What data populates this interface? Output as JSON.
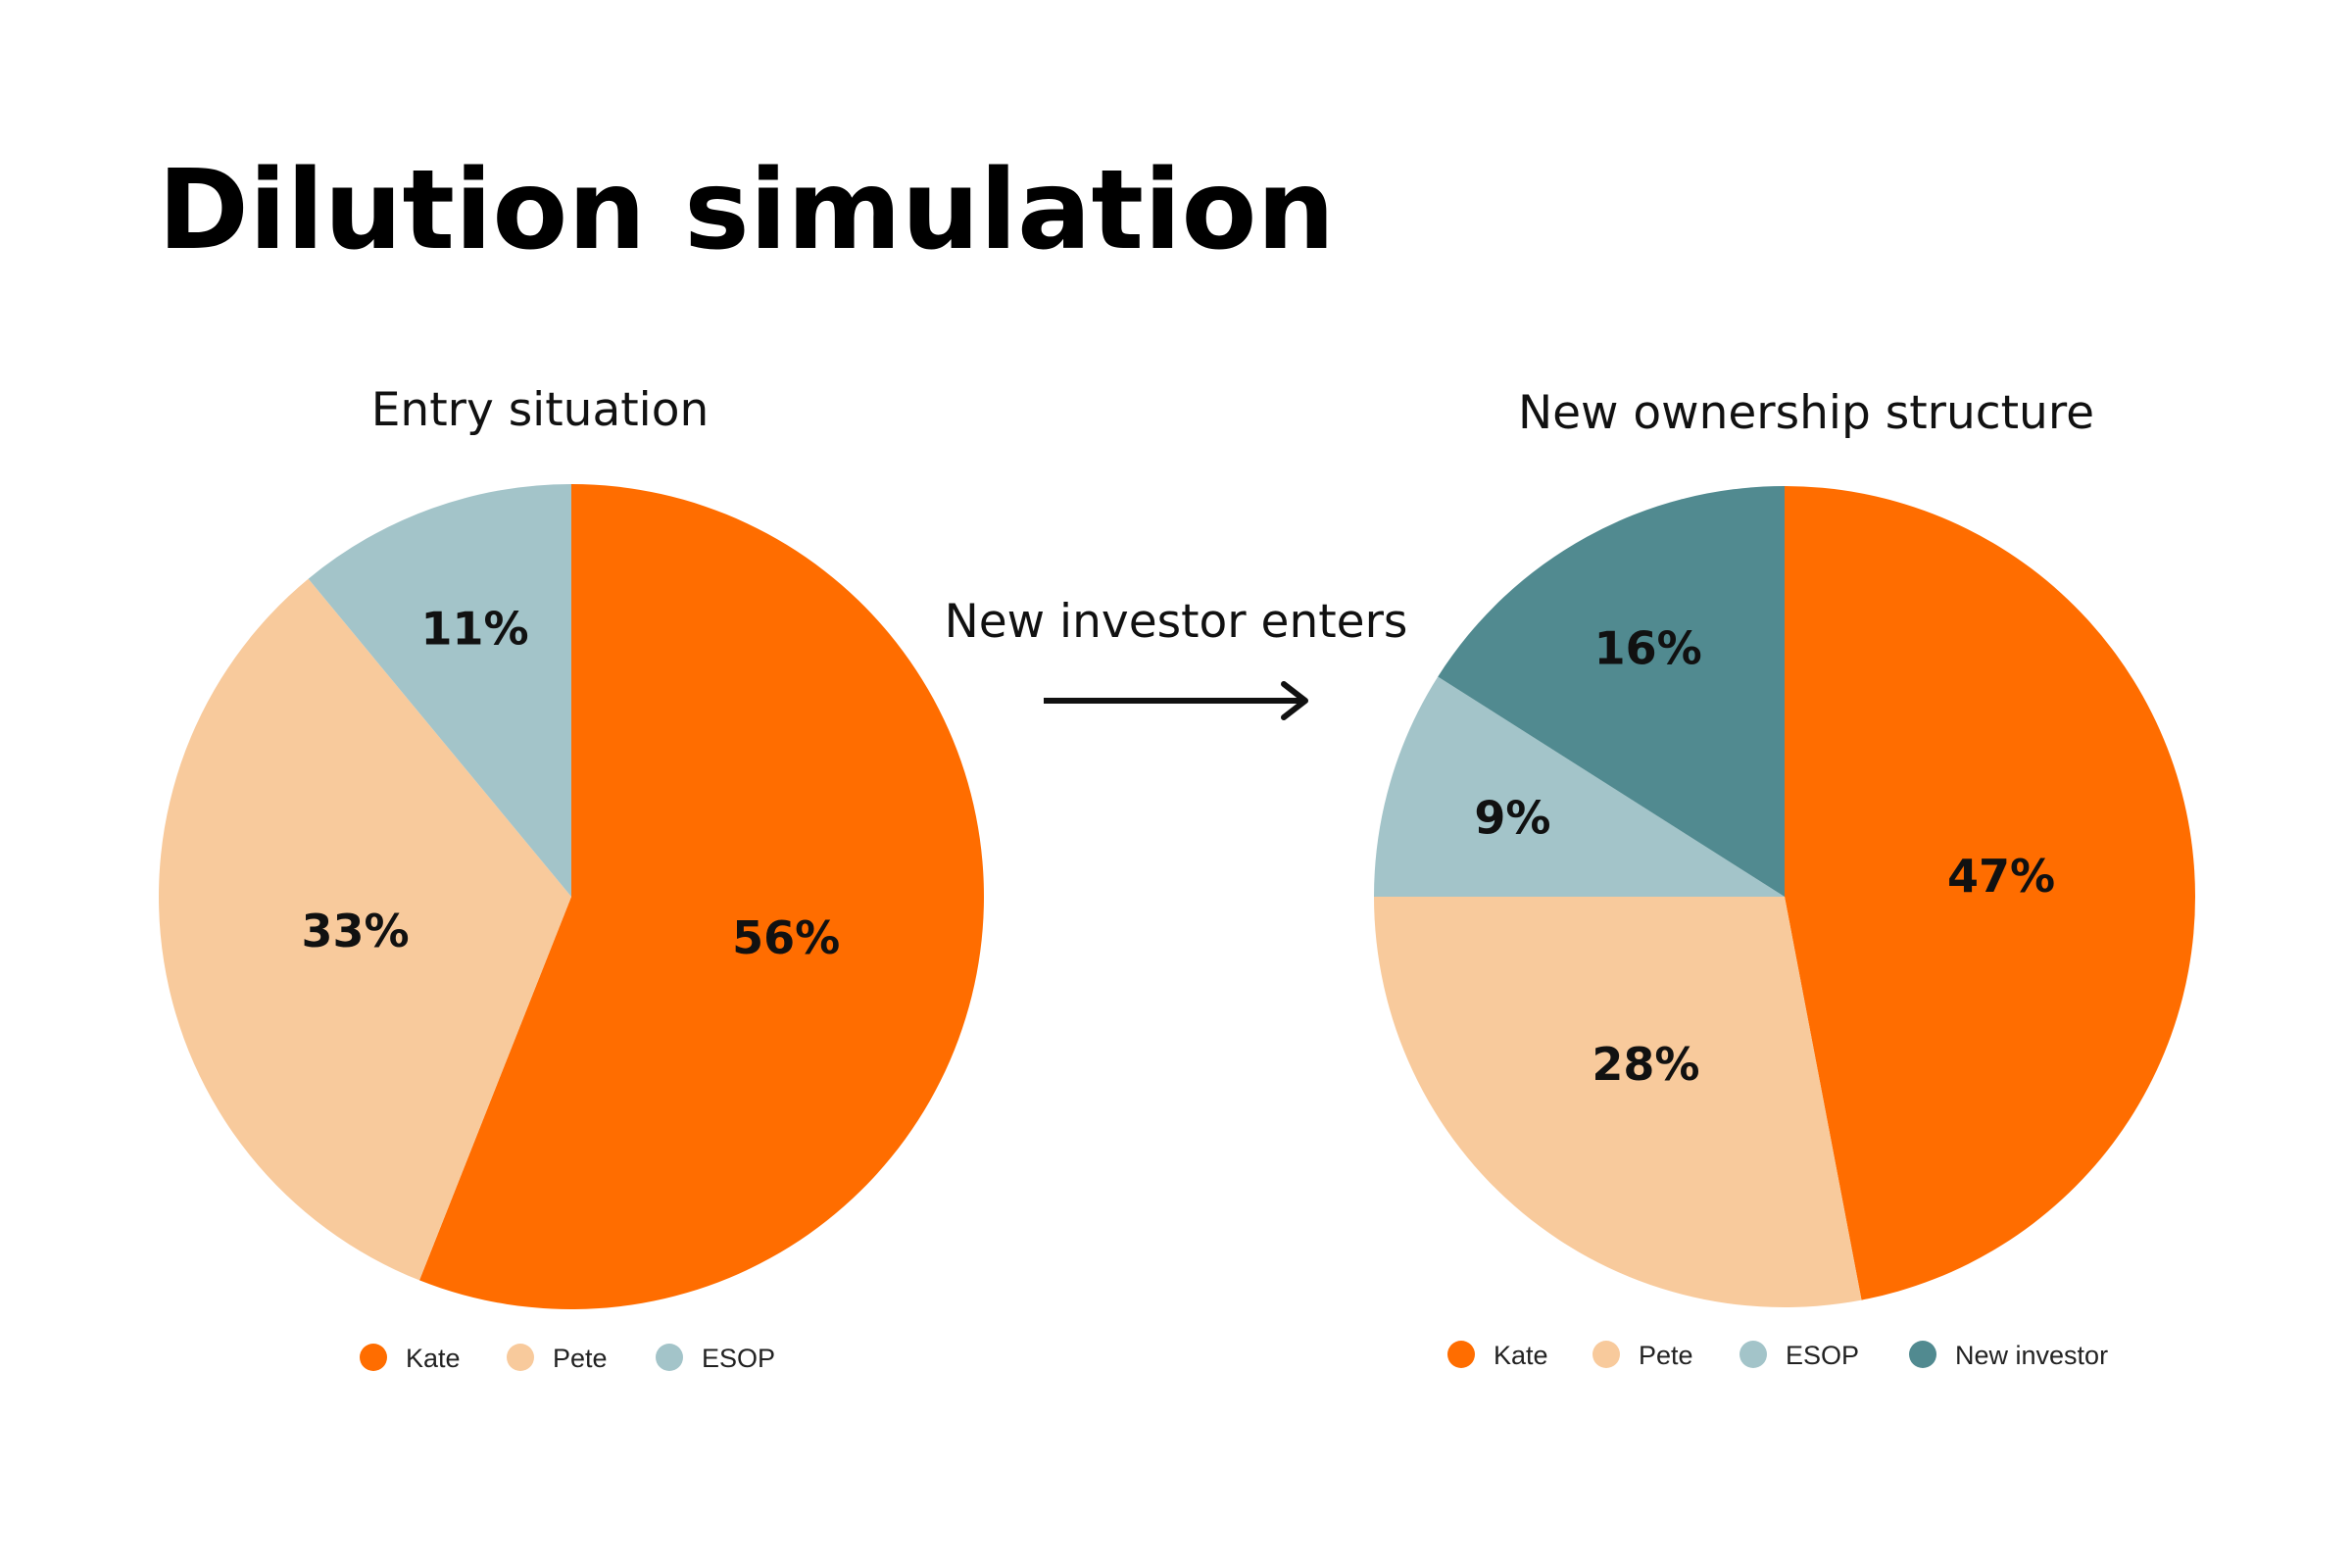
{
  "title": "Dilution simulation",
  "transition_label": "New investor enters",
  "colors": {
    "Kate": "#ff6d00",
    "Pete": "#f8ca9c",
    "ESOP": "#a3c4c9",
    "New investor": "#518a90"
  },
  "chart_data": [
    {
      "type": "pie",
      "title": "Entry situation",
      "categories": [
        "Kate",
        "Pete",
        "ESOP"
      ],
      "values": [
        56,
        33,
        11
      ],
      "labels": [
        "56%",
        "33%",
        "11%"
      ],
      "legend": [
        "Kate",
        "Pete",
        "ESOP"
      ],
      "legend_position": "bottom"
    },
    {
      "type": "pie",
      "title": "New ownership structure",
      "categories": [
        "Kate",
        "Pete",
        "ESOP",
        "New investor"
      ],
      "values": [
        47,
        28,
        9,
        16
      ],
      "labels": [
        "47%",
        "28%",
        "9%",
        "16%"
      ],
      "legend": [
        "Kate",
        "Pete",
        "ESOP",
        "New investor"
      ],
      "legend_position": "bottom"
    }
  ]
}
